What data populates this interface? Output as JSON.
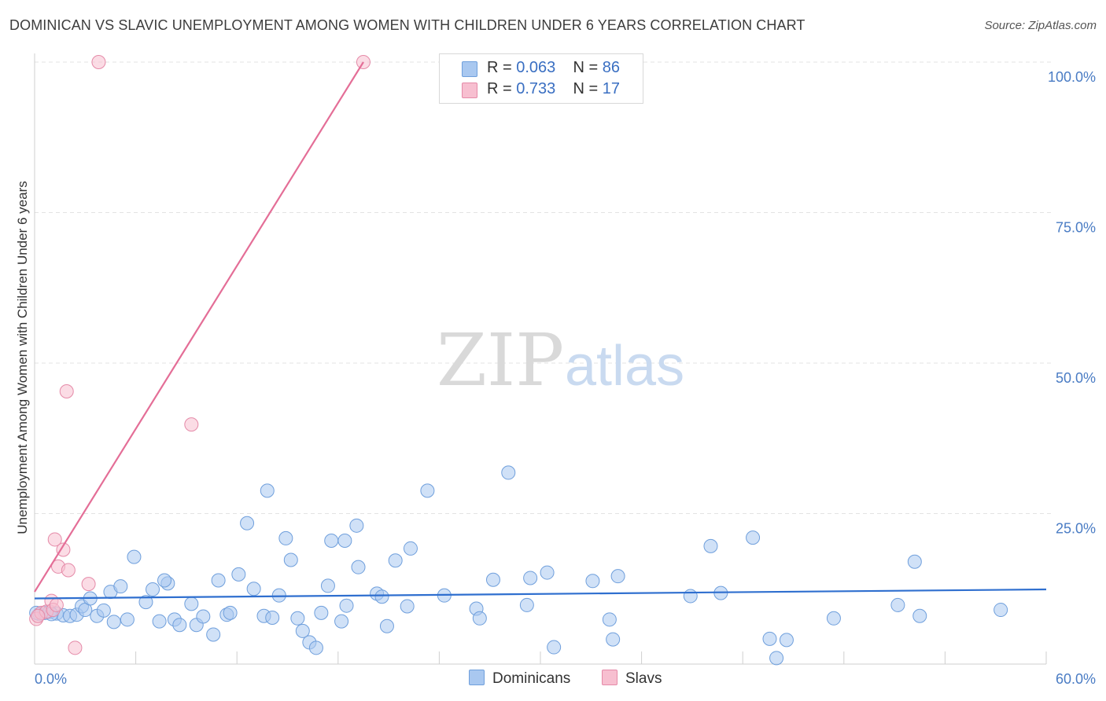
{
  "title": "DOMINICAN VS SLAVIC UNEMPLOYMENT AMONG WOMEN WITH CHILDREN UNDER 6 YEARS CORRELATION CHART",
  "source": "Source: ZipAtlas.com",
  "watermark": {
    "zip": "ZIP",
    "atlas": "atlas"
  },
  "legend": {
    "rows": [
      {
        "r_label": "R = ",
        "r_value": "0.063",
        "n_label": "N = ",
        "n_value": "86",
        "color": "#a9c8f0",
        "stroke": "#6f9fdc"
      },
      {
        "r_label": "R = ",
        "r_value": "0.733",
        "n_label": "N = ",
        "n_value": "17",
        "color": "#f7bfd0",
        "stroke": "#e58aa8"
      }
    ]
  },
  "bottom_legend": {
    "dominicans": "Dominicans",
    "slavs": "Slavs"
  },
  "chart_data": {
    "type": "scatter",
    "title": "DOMINICAN VS SLAVIC UNEMPLOYMENT AMONG WOMEN WITH CHILDREN UNDER 6 YEARS CORRELATION CHART",
    "xlabel": "",
    "ylabel": "Unemployment Among Women with Children Under 6 years",
    "xlim": [
      0,
      60
    ],
    "ylim": [
      0,
      100
    ],
    "x_tick_labels": [
      {
        "value": 0,
        "label": "0.0%"
      },
      {
        "value": 60,
        "label": "60.0%"
      }
    ],
    "y_tick_labels": [
      {
        "value": 25,
        "label": "25.0%"
      },
      {
        "value": 50,
        "label": "50.0%"
      },
      {
        "value": 75,
        "label": "75.0%"
      },
      {
        "value": 100,
        "label": "100.0%"
      }
    ],
    "grid": true,
    "legend_position": "top-center",
    "series": [
      {
        "name": "Dominicans",
        "color": "#a9c8f0",
        "stroke": "#6f9fdc",
        "trend_color": "#2f6fcf",
        "trend": {
          "x": [
            0,
            60
          ],
          "y": [
            10.9,
            12.4
          ]
        },
        "points": [
          [
            0.3,
            8.3
          ],
          [
            0.6,
            8.5
          ],
          [
            0.9,
            8.7
          ],
          [
            1.3,
            8.4
          ],
          [
            1.7,
            8.1
          ],
          [
            2.1,
            8.0
          ],
          [
            2.5,
            8.2
          ],
          [
            2.8,
            9.6
          ],
          [
            3.0,
            9.0
          ],
          [
            3.3,
            10.9
          ],
          [
            3.7,
            8.0
          ],
          [
            4.1,
            8.9
          ],
          [
            4.5,
            12.0
          ],
          [
            4.7,
            7.0
          ],
          [
            5.1,
            12.9
          ],
          [
            5.9,
            17.8
          ],
          [
            5.5,
            7.4
          ],
          [
            6.6,
            10.3
          ],
          [
            7.0,
            12.4
          ],
          [
            7.4,
            7.1
          ],
          [
            7.9,
            13.4
          ],
          [
            7.7,
            13.9
          ],
          [
            8.3,
            7.4
          ],
          [
            8.6,
            6.5
          ],
          [
            9.3,
            10.0
          ],
          [
            9.6,
            6.5
          ],
          [
            10.0,
            7.9
          ],
          [
            10.6,
            4.9
          ],
          [
            10.9,
            13.9
          ],
          [
            11.4,
            8.2
          ],
          [
            11.6,
            8.5
          ],
          [
            12.1,
            14.9
          ],
          [
            12.6,
            23.4
          ],
          [
            13.0,
            12.5
          ],
          [
            13.6,
            8.0
          ],
          [
            14.1,
            7.7
          ],
          [
            13.8,
            28.8
          ],
          [
            14.5,
            11.4
          ],
          [
            14.9,
            20.9
          ],
          [
            15.2,
            17.3
          ],
          [
            15.6,
            7.6
          ],
          [
            15.9,
            5.5
          ],
          [
            16.3,
            3.6
          ],
          [
            16.7,
            2.7
          ],
          [
            17.0,
            8.5
          ],
          [
            17.4,
            13.0
          ],
          [
            17.6,
            20.5
          ],
          [
            18.2,
            7.1
          ],
          [
            18.5,
            9.7
          ],
          [
            18.4,
            20.5
          ],
          [
            19.1,
            23.0
          ],
          [
            19.2,
            16.1
          ],
          [
            20.3,
            11.7
          ],
          [
            20.6,
            11.2
          ],
          [
            20.9,
            6.3
          ],
          [
            21.4,
            17.2
          ],
          [
            22.1,
            9.6
          ],
          [
            22.3,
            19.2
          ],
          [
            23.3,
            28.8
          ],
          [
            24.3,
            11.4
          ],
          [
            26.2,
            9.2
          ],
          [
            26.4,
            7.6
          ],
          [
            27.2,
            14.0
          ],
          [
            28.1,
            31.8
          ],
          [
            29.2,
            9.8
          ],
          [
            29.4,
            14.3
          ],
          [
            30.4,
            15.2
          ],
          [
            30.8,
            2.8
          ],
          [
            33.1,
            13.8
          ],
          [
            34.1,
            7.4
          ],
          [
            34.3,
            4.1
          ],
          [
            34.6,
            14.6
          ],
          [
            38.9,
            11.3
          ],
          [
            40.1,
            19.6
          ],
          [
            40.7,
            11.8
          ],
          [
            42.6,
            21.0
          ],
          [
            43.6,
            4.2
          ],
          [
            44.0,
            1.0
          ],
          [
            44.6,
            4.0
          ],
          [
            47.4,
            7.6
          ],
          [
            51.2,
            9.8
          ],
          [
            52.2,
            17.0
          ],
          [
            52.5,
            8.0
          ],
          [
            57.3,
            9.0
          ],
          [
            0.1,
            8.5
          ],
          [
            1.0,
            8.3
          ]
        ]
      },
      {
        "name": "Slavs",
        "color": "#f7bfd0",
        "stroke": "#e58aa8",
        "trend_color": "#e46e97",
        "trend": {
          "x": [
            0,
            19.5
          ],
          "y": [
            12.0,
            100
          ]
        },
        "points": [
          [
            0.1,
            7.5
          ],
          [
            0.4,
            8.5
          ],
          [
            0.7,
            8.7
          ],
          [
            1.0,
            10.5
          ],
          [
            1.1,
            9.0
          ],
          [
            1.2,
            20.7
          ],
          [
            1.3,
            9.8
          ],
          [
            1.4,
            16.2
          ],
          [
            1.7,
            19.0
          ],
          [
            1.9,
            45.3
          ],
          [
            2.0,
            15.6
          ],
          [
            2.4,
            2.7
          ],
          [
            3.2,
            13.3
          ],
          [
            3.8,
            100
          ],
          [
            9.3,
            39.8
          ],
          [
            19.5,
            100
          ],
          [
            0.2,
            8.0
          ]
        ]
      }
    ]
  }
}
